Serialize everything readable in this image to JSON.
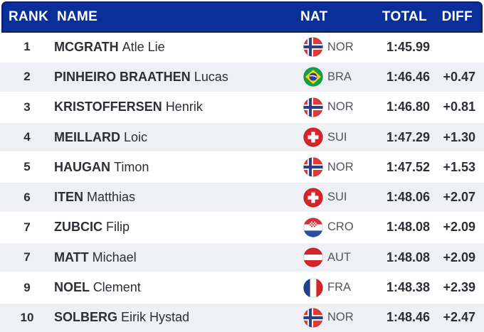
{
  "table": {
    "headers": {
      "rank": "RANK",
      "name": "NAME",
      "nat": "NAT",
      "total": "TOTAL",
      "diff": "DIFF"
    },
    "rows": [
      {
        "rank": "1",
        "last": "MCGRATH",
        "first": "Atle Lie",
        "nat": "NOR",
        "flag": "nor-flag-icon",
        "total": "1:45.99",
        "diff": ""
      },
      {
        "rank": "2",
        "last": "PINHEIRO BRAATHEN",
        "first": "Lucas",
        "nat": "BRA",
        "flag": "bra-flag-icon",
        "total": "1:46.46",
        "diff": "+0.47"
      },
      {
        "rank": "3",
        "last": "KRISTOFFERSEN",
        "first": "Henrik",
        "nat": "NOR",
        "flag": "nor-flag-icon",
        "total": "1:46.80",
        "diff": "+0.81"
      },
      {
        "rank": "4",
        "last": "MEILLARD",
        "first": "Loic",
        "nat": "SUI",
        "flag": "sui-flag-icon",
        "total": "1:47.29",
        "diff": "+1.30"
      },
      {
        "rank": "5",
        "last": "HAUGAN",
        "first": "Timon",
        "nat": "NOR",
        "flag": "nor-flag-icon",
        "total": "1:47.52",
        "diff": "+1.53"
      },
      {
        "rank": "6",
        "last": "ITEN",
        "first": "Matthias",
        "nat": "SUI",
        "flag": "sui-flag-icon",
        "total": "1:48.06",
        "diff": "+2.07"
      },
      {
        "rank": "7",
        "last": "ZUBCIC",
        "first": "Filip",
        "nat": "CRO",
        "flag": "cro-flag-icon",
        "total": "1:48.08",
        "diff": "+2.09"
      },
      {
        "rank": "7",
        "last": "MATT",
        "first": "Michael",
        "nat": "AUT",
        "flag": "aut-flag-icon",
        "total": "1:48.08",
        "diff": "+2.09"
      },
      {
        "rank": "9",
        "last": "NOEL",
        "first": "Clement",
        "nat": "FRA",
        "flag": "fra-flag-icon",
        "total": "1:48.38",
        "diff": "+2.39"
      },
      {
        "rank": "10",
        "last": "SOLBERG",
        "first": "Eirik Hystad",
        "nat": "NOR",
        "flag": "nor-flag-icon",
        "total": "1:48.46",
        "diff": "+2.47"
      }
    ]
  },
  "colors": {
    "header_bg": "#0b2f99",
    "header_border": "#131f63",
    "header_text": "#ffffff",
    "row_bg": "#ffffff",
    "row_alt_bg": "#eef0f4",
    "text_primary": "#2d2e36",
    "nat_code_text": "#54555e"
  }
}
